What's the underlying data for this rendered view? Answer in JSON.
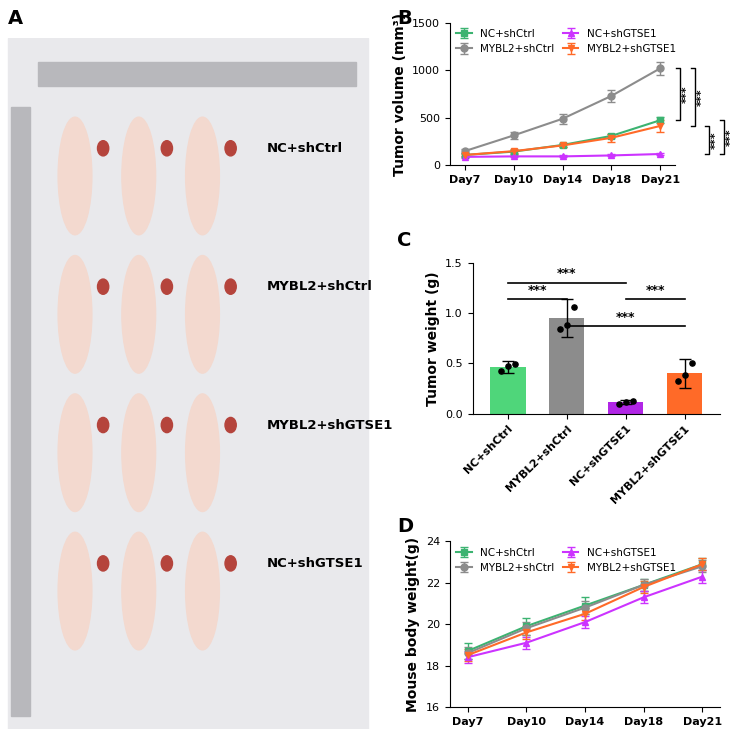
{
  "chart_data": [
    {
      "type": "image",
      "panel": "A",
      "labels": [
        "NC+shCtrl",
        "MYBL2+shCtrl",
        "MYBL2+shGTSE1",
        "NC+shGTSE1"
      ]
    },
    {
      "type": "line",
      "panel": "B",
      "categories": [
        "Day7",
        "Day10",
        "Day14",
        "Day18",
        "Day21"
      ],
      "y_label": "Tumor volume (mm³)",
      "ylim": [
        0,
        1500
      ],
      "yticks": [
        0,
        500,
        1000,
        1500
      ],
      "legend": "upper left",
      "series": [
        {
          "name": "NC+shCtrl",
          "color": "#3cb371",
          "marker": "square",
          "values": [
            110,
            145,
            215,
            310,
            475
          ],
          "errors": [
            20,
            20,
            20,
            25,
            30
          ]
        },
        {
          "name": "MYBL2+shCtrl",
          "color": "#8c8c8c",
          "marker": "circle",
          "values": [
            150,
            315,
            490,
            730,
            1020
          ],
          "errors": [
            20,
            40,
            50,
            60,
            70
          ]
        },
        {
          "name": "NC+shGTSE1",
          "color": "#cc33ff",
          "marker": "triangle_up",
          "values": [
            90,
            95,
            95,
            105,
            120
          ],
          "errors": [
            10,
            10,
            10,
            10,
            10
          ]
        },
        {
          "name": "MYBL2+shGTSE1",
          "color": "#ff6a28",
          "marker": "triangle_down",
          "values": [
            110,
            150,
            210,
            290,
            415
          ],
          "errors": [
            15,
            20,
            20,
            40,
            60
          ]
        }
      ],
      "significance": [
        {
          "text": "***",
          "pair": [
            "MYBL2+shCtrl",
            "NC+shCtrl"
          ]
        },
        {
          "text": "***",
          "pair": [
            "MYBL2+shCtrl",
            "MYBL2+shGTSE1"
          ]
        },
        {
          "text": "***",
          "pair": [
            "MYBL2+shGTSE1",
            "NC+shGTSE1"
          ]
        },
        {
          "text": "***",
          "pair": [
            "NC+shCtrl",
            "NC+shGTSE1"
          ]
        }
      ]
    },
    {
      "type": "bar",
      "panel": "C",
      "categories": [
        "NC+shCtrl",
        "MYBL2+shCtrl",
        "NC+shGTSE1",
        "MYBL2+shGTSE1"
      ],
      "values": [
        0.46,
        0.95,
        0.12,
        0.4
      ],
      "errors": [
        0.06,
        0.19,
        0.02,
        0.14
      ],
      "points": [
        [
          0.42,
          0.47,
          0.49
        ],
        [
          0.84,
          0.88,
          1.06
        ],
        [
          0.1,
          0.12,
          0.13
        ],
        [
          0.33,
          0.38,
          0.5
        ]
      ],
      "colors": [
        "#4fd67a",
        "#8c8c8c",
        "#b126e6",
        "#ff6a28"
      ],
      "y_label": "Tumor weight (g)",
      "ylim": [
        0,
        1.5
      ],
      "yticks": [
        {
          "value": 0,
          "label": "0.0"
        },
        {
          "value": 0.5,
          "label": "0.5"
        },
        {
          "value": 1.0,
          "label": "1.0"
        },
        {
          "value": 1.5,
          "label": "1.5"
        }
      ],
      "significance": [
        {
          "text": "***",
          "pair": [
            "NC+shCtrl",
            "NC+shGTSE1"
          ]
        },
        {
          "text": "***",
          "pair": [
            "NC+shCtrl",
            "MYBL2+shCtrl"
          ]
        },
        {
          "text": "***",
          "pair": [
            "NC+shGTSE1",
            "MYBL2+shGTSE1"
          ]
        },
        {
          "text": "***",
          "pair": [
            "MYBL2+shCtrl",
            "MYBL2+shGTSE1"
          ]
        }
      ]
    },
    {
      "type": "line",
      "panel": "D",
      "categories": [
        "Day7",
        "Day10",
        "Day14",
        "Day18",
        "Day21"
      ],
      "y_label": "Mouse body weight(g)",
      "ylim": [
        16,
        24
      ],
      "yticks": [
        16,
        18,
        20,
        22,
        24
      ],
      "legend": "upper left",
      "series": [
        {
          "name": "NC+shCtrl",
          "color": "#3cb371",
          "marker": "square",
          "values": [
            18.7,
            19.9,
            20.9,
            21.9,
            22.9
          ],
          "errors": [
            0.4,
            0.4,
            0.4,
            0.3,
            0.3
          ]
        },
        {
          "name": "MYBL2+shCtrl",
          "color": "#8c8c8c",
          "marker": "circle",
          "values": [
            18.6,
            19.8,
            20.8,
            21.9,
            22.8
          ],
          "errors": [
            0.3,
            0.3,
            0.3,
            0.3,
            0.3
          ]
        },
        {
          "name": "NC+shGTSE1",
          "color": "#cc33ff",
          "marker": "triangle_up",
          "values": [
            18.4,
            19.1,
            20.1,
            21.3,
            22.3
          ],
          "errors": [
            0.3,
            0.3,
            0.3,
            0.3,
            0.3
          ]
        },
        {
          "name": "MYBL2+shGTSE1",
          "color": "#ff6a28",
          "marker": "triangle_down",
          "values": [
            18.5,
            19.6,
            20.5,
            21.8,
            22.9
          ],
          "errors": [
            0.3,
            0.3,
            0.3,
            0.3,
            0.3
          ]
        }
      ]
    }
  ]
}
